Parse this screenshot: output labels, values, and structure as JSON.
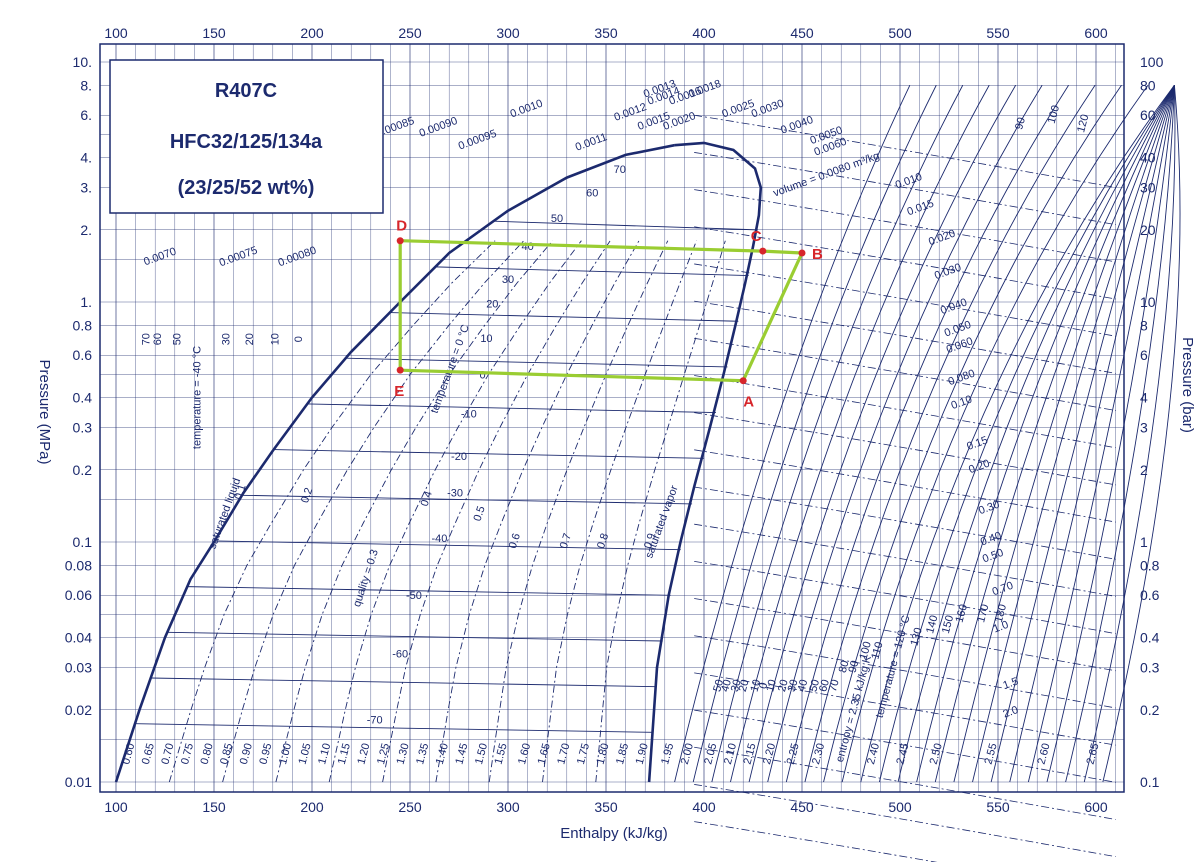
{
  "refrigerant_box": {
    "line1": "R407C",
    "line2": "HFC32/125/134a",
    "line3": "(23/25/52 wt%)"
  },
  "axes": {
    "x_title": "Enthalpy (kJ/kg)",
    "y_left_title": "Pressure (MPa)",
    "y_right_title": "Pressure (bar)"
  },
  "colors": {
    "chart_ink": "#1c2a6e",
    "cycle_line": "#9acd32",
    "point_marker": "#d7262b"
  },
  "chart_data": {
    "type": "line",
    "title": "R407C",
    "xlabel": "Enthalpy (kJ/kg)",
    "ylabel": "Pressure (MPa)",
    "y2label": "Pressure (bar)",
    "y_scale": "log",
    "xlim": [
      100,
      610
    ],
    "ylim": [
      0.01,
      10
    ],
    "x_ticks": [
      "100",
      "150",
      "200",
      "250",
      "300",
      "350",
      "400",
      "450",
      "500",
      "550",
      "600"
    ],
    "y_ticks_left": [
      {
        "v": 10,
        "label": "10."
      },
      {
        "v": 8,
        "label": "8."
      },
      {
        "v": 6,
        "label": "6."
      },
      {
        "v": 4,
        "label": "4."
      },
      {
        "v": 3,
        "label": "3."
      },
      {
        "v": 2,
        "label": "2."
      },
      {
        "v": 1,
        "label": "1."
      },
      {
        "v": 0.8,
        "label": "0.8"
      },
      {
        "v": 0.6,
        "label": "0.6"
      },
      {
        "v": 0.4,
        "label": "0.4"
      },
      {
        "v": 0.3,
        "label": "0.3"
      },
      {
        "v": 0.2,
        "label": "0.2"
      },
      {
        "v": 0.1,
        "label": "0.1"
      },
      {
        "v": 0.08,
        "label": "0.08"
      },
      {
        "v": 0.06,
        "label": "0.06"
      },
      {
        "v": 0.04,
        "label": "0.04"
      },
      {
        "v": 0.03,
        "label": "0.03"
      },
      {
        "v": 0.02,
        "label": "0.02"
      },
      {
        "v": 0.01,
        "label": "0.01"
      }
    ],
    "y_ticks_right": [
      {
        "v": 10,
        "label": "100"
      },
      {
        "v": 8,
        "label": "80"
      },
      {
        "v": 6,
        "label": "60"
      },
      {
        "v": 4,
        "label": "40"
      },
      {
        "v": 3,
        "label": "30"
      },
      {
        "v": 2,
        "label": "20"
      },
      {
        "v": 1,
        "label": "10"
      },
      {
        "v": 0.8,
        "label": "8"
      },
      {
        "v": 0.6,
        "label": "6"
      },
      {
        "v": 0.4,
        "label": "4"
      },
      {
        "v": 0.3,
        "label": "3"
      },
      {
        "v": 0.2,
        "label": "2"
      },
      {
        "v": 0.1,
        "label": "1"
      },
      {
        "v": 0.08,
        "label": "0.8"
      },
      {
        "v": 0.06,
        "label": "0.6"
      },
      {
        "v": 0.04,
        "label": "0.4"
      },
      {
        "v": 0.03,
        "label": "0.3"
      },
      {
        "v": 0.02,
        "label": "0.2"
      },
      {
        "v": 0.01,
        "label": "0.1"
      }
    ],
    "saturated_liquid": {
      "name": "saturated liquid",
      "points": [
        [
          100,
          0.01
        ],
        [
          112,
          0.02
        ],
        [
          125,
          0.04
        ],
        [
          138,
          0.07
        ],
        [
          150,
          0.1
        ],
        [
          165,
          0.16
        ],
        [
          180,
          0.24
        ],
        [
          200,
          0.4
        ],
        [
          220,
          0.62
        ],
        [
          245,
          1.0
        ],
        [
          270,
          1.6
        ],
        [
          300,
          2.4
        ],
        [
          330,
          3.3
        ],
        [
          360,
          4.1
        ],
        [
          385,
          4.5
        ]
      ]
    },
    "saturated_vapor": {
      "name": "saturated vapor",
      "points": [
        [
          372,
          0.01
        ],
        [
          376,
          0.03
        ],
        [
          382,
          0.06
        ],
        [
          388,
          0.1
        ],
        [
          395,
          0.17
        ],
        [
          403,
          0.3
        ],
        [
          410,
          0.5
        ],
        [
          416,
          0.8
        ],
        [
          421,
          1.2
        ],
        [
          425,
          1.7
        ],
        [
          428,
          2.3
        ],
        [
          429,
          3.0
        ],
        [
          426,
          3.6
        ],
        [
          415,
          4.3
        ],
        [
          400,
          4.6
        ],
        [
          385,
          4.5
        ]
      ]
    },
    "isotherm_labels": [
      {
        "label": "70",
        "h": 357,
        "p": 3.45
      },
      {
        "label": "60",
        "h": 343,
        "p": 2.75
      },
      {
        "label": "50",
        "h": 325,
        "p": 2.15
      },
      {
        "label": "40",
        "h": 310,
        "p": 1.65
      },
      {
        "label": "30",
        "h": 300,
        "p": 1.2
      },
      {
        "label": "20",
        "h": 292,
        "p": 0.95
      },
      {
        "label": "10",
        "h": 289,
        "p": 0.68
      },
      {
        "label": "0",
        "h": 287,
        "p": 0.48
      },
      {
        "label": "-10",
        "h": 280,
        "p": 0.33
      },
      {
        "label": "-20",
        "h": 275,
        "p": 0.22
      },
      {
        "label": "-30",
        "h": 273,
        "p": 0.155
      },
      {
        "label": "-40",
        "h": 265,
        "p": 0.1
      },
      {
        "label": "-50",
        "h": 252,
        "p": 0.058
      },
      {
        "label": "-60",
        "h": 245,
        "p": 0.033
      },
      {
        "label": "-70",
        "h": 232,
        "p": 0.0175
      }
    ],
    "quality_labels": [
      {
        "label": "0.1",
        "h": 165,
        "p": 0.16
      },
      {
        "label": "0.2",
        "h": 199,
        "p": 0.155
      },
      {
        "label": "quality = 0.3",
        "h": 229,
        "p": 0.07
      },
      {
        "label": "0.4",
        "h": 260,
        "p": 0.15
      },
      {
        "label": "0.5",
        "h": 287,
        "p": 0.13
      },
      {
        "label": "0.6",
        "h": 305,
        "p": 0.1
      },
      {
        "label": "0.7",
        "h": 331,
        "p": 0.1
      },
      {
        "label": "0.8",
        "h": 350,
        "p": 0.1
      },
      {
        "label": "0.9",
        "h": 374,
        "p": 0.1
      }
    ],
    "volume_labels": [
      {
        "label": "volume = 0.0080 m³/kg",
        "h": 463,
        "p": 3.3
      },
      {
        "label": "0.010",
        "h": 505,
        "p": 3.1
      },
      {
        "label": "0.015",
        "h": 511,
        "p": 2.4
      },
      {
        "label": "0.020",
        "h": 522,
        "p": 1.8
      },
      {
        "label": "0.030",
        "h": 525,
        "p": 1.3
      },
      {
        "label": "0.040",
        "h": 528,
        "p": 0.93
      },
      {
        "label": "0.050",
        "h": 530,
        "p": 0.75
      },
      {
        "label": "0.060",
        "h": 531,
        "p": 0.64
      },
      {
        "label": "0.080",
        "h": 532,
        "p": 0.47
      },
      {
        "label": "0.10",
        "h": 532,
        "p": 0.37
      },
      {
        "label": "0.15",
        "h": 540,
        "p": 0.25
      },
      {
        "label": "0.20",
        "h": 541,
        "p": 0.2
      },
      {
        "label": "0.30",
        "h": 546,
        "p": 0.135
      },
      {
        "label": "0.40",
        "h": 547,
        "p": 0.1
      },
      {
        "label": "0.50",
        "h": 548,
        "p": 0.085
      },
      {
        "label": "0.70",
        "h": 553,
        "p": 0.062
      },
      {
        "label": "1.0",
        "h": 552,
        "p": 0.043
      },
      {
        "label": "1.5",
        "h": 557,
        "p": 0.025
      },
      {
        "label": "2.0",
        "h": 557,
        "p": 0.019
      },
      {
        "label": "0.0070",
        "h": 123,
        "p": 1.5
      },
      {
        "label": "0.00075",
        "h": 163,
        "p": 1.5
      },
      {
        "label": "0.00080",
        "h": 193,
        "p": 1.5
      },
      {
        "label": "0.00085",
        "h": 243,
        "p": 5.2
      },
      {
        "label": "0.00090",
        "h": 265,
        "p": 5.2
      },
      {
        "label": "0.00095",
        "h": 285,
        "p": 4.6
      },
      {
        "label": "0.0010",
        "h": 310,
        "p": 6.2
      },
      {
        "label": "0.0011",
        "h": 343,
        "p": 4.5
      },
      {
        "label": "0.0012",
        "h": 363,
        "p": 6.0
      },
      {
        "label": "0.0013",
        "h": 378,
        "p": 7.5
      },
      {
        "label": "0.0014",
        "h": 380,
        "p": 7.0
      },
      {
        "label": "0.0015",
        "h": 375,
        "p": 5.5
      },
      {
        "label": "0.0016",
        "h": 391,
        "p": 7.0
      },
      {
        "label": "0.0018",
        "h": 401,
        "p": 7.5
      },
      {
        "label": "0.0020",
        "h": 388,
        "p": 5.5
      },
      {
        "label": "0.0025",
        "h": 418,
        "p": 6.2
      },
      {
        "label": "0.0030",
        "h": 433,
        "p": 6.2
      },
      {
        "label": "0.0040",
        "h": 448,
        "p": 5.3
      },
      {
        "label": "0.0050",
        "h": 463,
        "p": 4.8
      },
      {
        "label": "0.0060",
        "h": 465,
        "p": 4.3
      }
    ],
    "left_temperature_labels": [
      {
        "label": "70",
        "h": 117,
        "p": 0.7
      },
      {
        "label": "60",
        "h": 123,
        "p": 0.7
      },
      {
        "label": "50",
        "h": 133,
        "p": 0.7
      },
      {
        "label": "30",
        "h": 158,
        "p": 0.7
      },
      {
        "label": "20",
        "h": 170,
        "p": 0.7
      },
      {
        "label": "10",
        "h": 183,
        "p": 0.7
      },
      {
        "label": "0",
        "h": 195,
        "p": 0.7
      },
      {
        "label": "temperature = -40 °C",
        "h": 143,
        "p": 0.4
      }
    ],
    "entropy_labels": [
      {
        "label": "0.60",
        "h": 108,
        "p": 0.013
      },
      {
        "label": "0.65",
        "h": 118,
        "p": 0.013
      },
      {
        "label": "0.70",
        "h": 128,
        "p": 0.013
      },
      {
        "label": "0.75",
        "h": 138,
        "p": 0.013
      },
      {
        "label": "0.80",
        "h": 148,
        "p": 0.013
      },
      {
        "label": "0.85",
        "h": 158,
        "p": 0.013
      },
      {
        "label": "0.90",
        "h": 168,
        "p": 0.013
      },
      {
        "label": "0.95",
        "h": 178,
        "p": 0.013
      },
      {
        "label": "1.00",
        "h": 188,
        "p": 0.013
      },
      {
        "label": "1.05",
        "h": 198,
        "p": 0.013
      },
      {
        "label": "1.10",
        "h": 208,
        "p": 0.013
      },
      {
        "label": "1.15",
        "h": 218,
        "p": 0.013
      },
      {
        "label": "1.20",
        "h": 228,
        "p": 0.013
      },
      {
        "label": "1.25",
        "h": 238,
        "p": 0.013
      },
      {
        "label": "1.30",
        "h": 248,
        "p": 0.013
      },
      {
        "label": "1.35",
        "h": 258,
        "p": 0.013
      },
      {
        "label": "1.40",
        "h": 268,
        "p": 0.013
      },
      {
        "label": "1.45",
        "h": 278,
        "p": 0.013
      },
      {
        "label": "1.50",
        "h": 288,
        "p": 0.013
      },
      {
        "label": "1.55",
        "h": 298,
        "p": 0.013
      },
      {
        "label": "1.60",
        "h": 310,
        "p": 0.013
      },
      {
        "label": "1.65",
        "h": 320,
        "p": 0.013
      },
      {
        "label": "1.70",
        "h": 330,
        "p": 0.013
      },
      {
        "label": "1.75",
        "h": 340,
        "p": 0.013
      },
      {
        "label": "1.80",
        "h": 350,
        "p": 0.013
      },
      {
        "label": "1.85",
        "h": 360,
        "p": 0.013
      },
      {
        "label": "1.90",
        "h": 370,
        "p": 0.013
      },
      {
        "label": "1.95",
        "h": 383,
        "p": 0.013
      },
      {
        "label": "2.00",
        "h": 393,
        "p": 0.013
      },
      {
        "label": "2.05",
        "h": 405,
        "p": 0.013
      },
      {
        "label": "2.10",
        "h": 415,
        "p": 0.013
      },
      {
        "label": "2.15",
        "h": 425,
        "p": 0.013
      },
      {
        "label": "2.20",
        "h": 435,
        "p": 0.013
      },
      {
        "label": "2.25",
        "h": 447,
        "p": 0.013
      },
      {
        "label": "2.30",
        "h": 460,
        "p": 0.013
      },
      {
        "label": "entropy = 2.35 kJ/kg K",
        "h": 478,
        "p": 0.02
      },
      {
        "label": "2.40",
        "h": 488,
        "p": 0.013
      },
      {
        "label": "2.45",
        "h": 503,
        "p": 0.013
      },
      {
        "label": "2.50",
        "h": 520,
        "p": 0.013
      },
      {
        "label": "2.55",
        "h": 548,
        "p": 0.013
      },
      {
        "label": "2.60",
        "h": 575,
        "p": 0.013
      },
      {
        "label": "2.65",
        "h": 600,
        "p": 0.013
      }
    ],
    "superheat_temperature_labels": [
      {
        "label": "50",
        "h": 409,
        "p": 0.025
      },
      {
        "label": "40",
        "h": 413,
        "p": 0.025
      },
      {
        "label": "30",
        "h": 418,
        "p": 0.025
      },
      {
        "label": "20",
        "h": 422,
        "p": 0.025
      },
      {
        "label": "10",
        "h": 428,
        "p": 0.025
      },
      {
        "label": "0",
        "h": 432,
        "p": 0.025
      },
      {
        "label": "10",
        "h": 436,
        "p": 0.025
      },
      {
        "label": "20",
        "h": 442,
        "p": 0.025
      },
      {
        "label": "30",
        "h": 447,
        "p": 0.025
      },
      {
        "label": "40",
        "h": 452,
        "p": 0.025
      },
      {
        "label": "50",
        "h": 458,
        "p": 0.025
      },
      {
        "label": "60",
        "h": 463,
        "p": 0.025
      },
      {
        "label": "70",
        "h": 468,
        "p": 0.025
      },
      {
        "label": "80",
        "h": 473,
        "p": 0.03
      },
      {
        "label": "90",
        "h": 478,
        "p": 0.03
      },
      {
        "label": "100",
        "h": 484,
        "p": 0.035
      },
      {
        "label": "110",
        "h": 490,
        "p": 0.035
      },
      {
        "label": "temperature = 120 °C",
        "h": 498,
        "p": 0.03
      },
      {
        "label": "130",
        "h": 510,
        "p": 0.04
      },
      {
        "label": "140",
        "h": 518,
        "p": 0.045
      },
      {
        "label": "150",
        "h": 526,
        "p": 0.045
      },
      {
        "label": "160",
        "h": 533,
        "p": 0.05
      },
      {
        "label": "170",
        "h": 544,
        "p": 0.05
      },
      {
        "label": "180",
        "h": 553,
        "p": 0.05
      },
      {
        "label": "90",
        "h": 563,
        "p": 5.5
      },
      {
        "label": "100",
        "h": 580,
        "p": 6.0
      },
      {
        "label": "120",
        "h": 595,
        "p": 5.5
      }
    ],
    "curve_labels": [
      {
        "label": "saturated liquid",
        "h": 157,
        "p": 0.13
      },
      {
        "label": "saturated vapor",
        "h": 380,
        "p": 0.12
      },
      {
        "label": "temperature = 0 °C",
        "h": 272,
        "p": 0.52
      }
    ],
    "cycle": {
      "points": [
        {
          "label": "A",
          "h": 420,
          "p": 0.47
        },
        {
          "label": "B",
          "h": 450,
          "p": 1.6
        },
        {
          "label": "C",
          "h": 430,
          "p": 1.63
        },
        {
          "label": "D",
          "h": 245,
          "p": 1.8
        },
        {
          "label": "E",
          "h": 245,
          "p": 0.52
        }
      ],
      "path": [
        "A",
        "B",
        "C",
        "D",
        "E",
        "A"
      ]
    }
  }
}
